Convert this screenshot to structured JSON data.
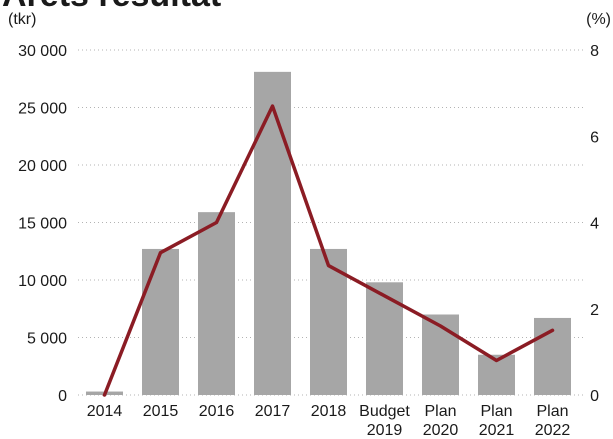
{
  "chart_data": {
    "type": "bar",
    "title": "Årets resultat",
    "y_unit_left": "(tkr)",
    "y_unit_right": "(%)",
    "categories": [
      [
        "2014"
      ],
      [
        "2015"
      ],
      [
        "2016"
      ],
      [
        "2017"
      ],
      [
        "2018"
      ],
      [
        "Budget",
        "2019"
      ],
      [
        "Plan",
        "2020"
      ],
      [
        "Plan",
        "2021"
      ],
      [
        "Plan",
        "2022"
      ]
    ],
    "series": [
      {
        "type": "bar",
        "axis": "left",
        "color": "#a6a6a6",
        "values": [
          300,
          12700,
          15900,
          28100,
          12700,
          9800,
          7000,
          3500,
          6700
        ]
      },
      {
        "type": "line",
        "axis": "right",
        "color": "#8b1c24",
        "values": [
          0.0,
          3.3,
          4.0,
          6.7,
          3.0,
          2.3,
          1.6,
          0.8,
          1.5
        ]
      }
    ],
    "ylim_left": [
      0,
      30000
    ],
    "yticks_left": [
      0,
      5000,
      10000,
      15000,
      20000,
      25000,
      30000
    ],
    "ytick_labels_left": [
      "0",
      "5 000",
      "10 000",
      "15 000",
      "20 000",
      "25 000",
      "30 000"
    ],
    "ylim_right": [
      0,
      8
    ],
    "yticks_right": [
      0,
      2,
      4,
      6,
      8
    ],
    "ytick_labels_right": [
      "0",
      "2",
      "4",
      "6",
      "8"
    ],
    "grid": "dotted-horizontal",
    "legend": "none"
  }
}
